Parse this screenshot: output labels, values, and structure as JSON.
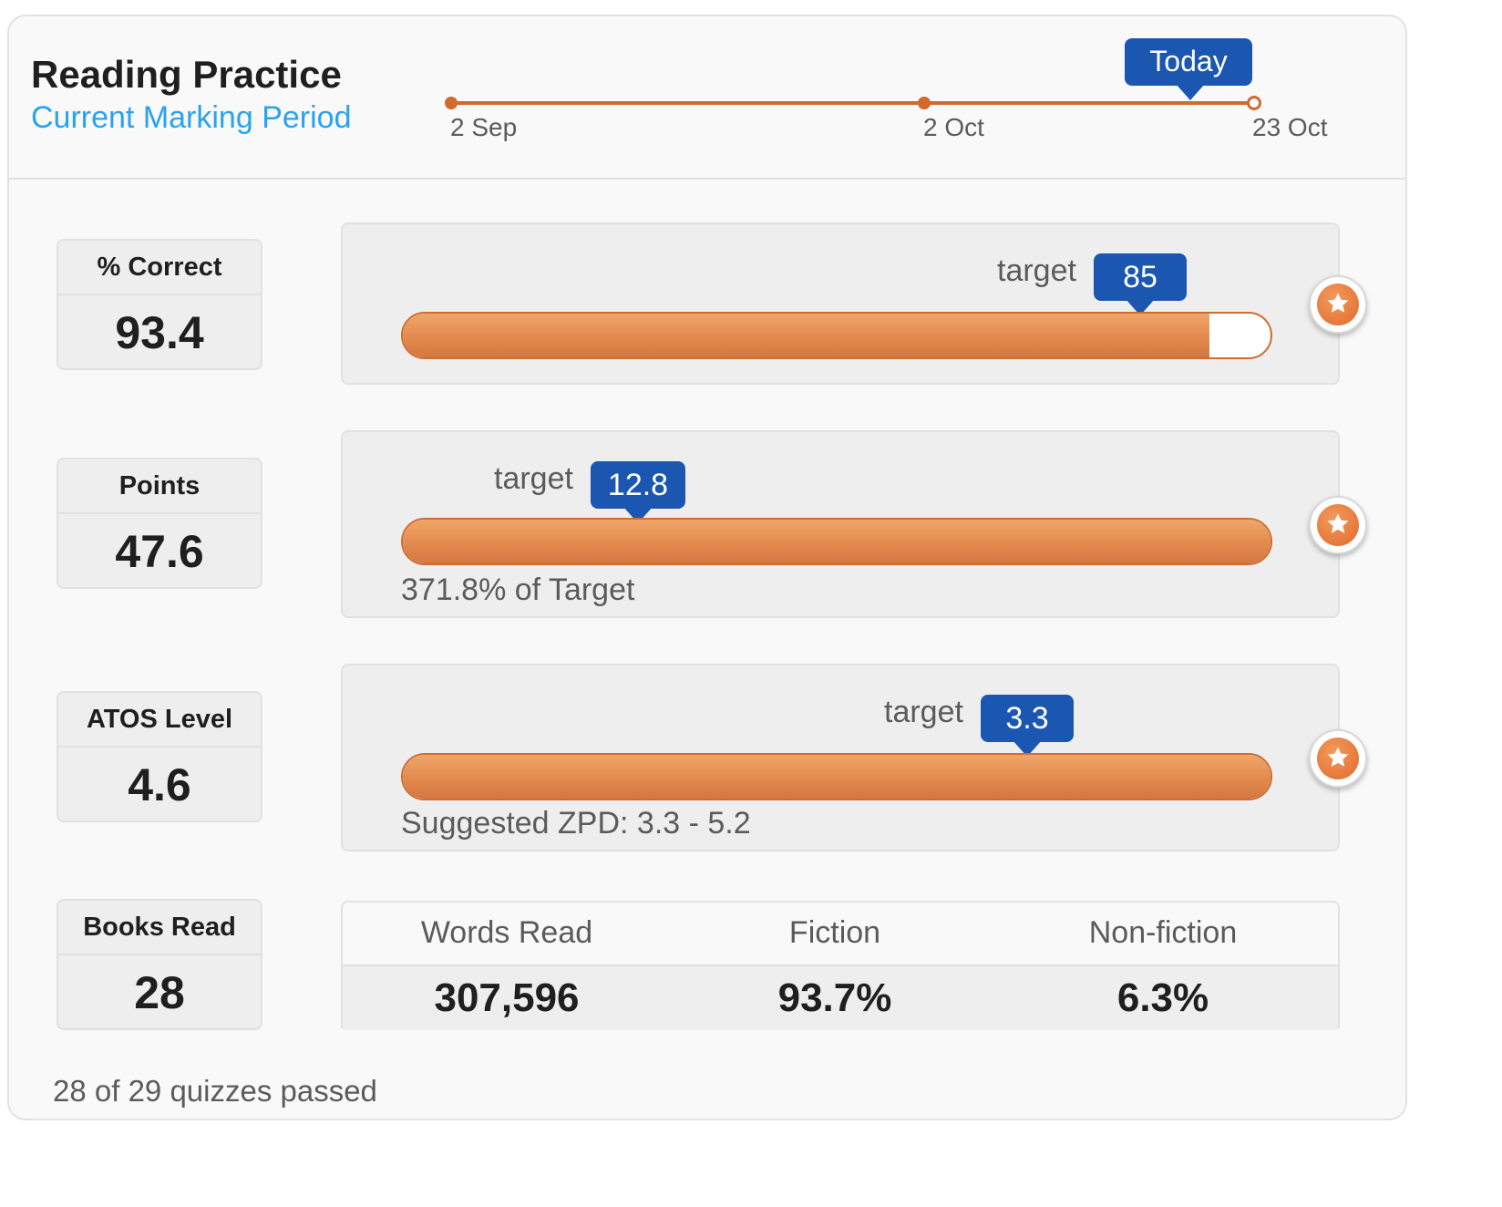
{
  "header": {
    "title": "Reading Practice",
    "subtitle": "Current Marking Period",
    "timeline": {
      "start_label": "2 Sep",
      "mid_label": "2 Oct",
      "end_label": "23 Oct",
      "today_label": "Today"
    }
  },
  "metrics": [
    {
      "label": "% Correct",
      "value": "93.4",
      "target_word": "target",
      "target_value": "85",
      "progress_fraction": 0.93,
      "note": "",
      "icon": "star-icon"
    },
    {
      "label": "Points",
      "value": "47.6",
      "target_word": "target",
      "target_value": "12.8",
      "progress_fraction": 1.0,
      "note": "371.8% of Target",
      "icon": "star-icon"
    },
    {
      "label": "ATOS Level",
      "value": "4.6",
      "target_word": "target",
      "target_value": "3.3",
      "progress_fraction": 1.0,
      "note": "Suggested ZPD: 3.3 - 5.2",
      "icon": "star-icon"
    }
  ],
  "books": {
    "label": "Books Read",
    "value": "28"
  },
  "stats": {
    "headers": [
      "Words Read",
      "Fiction",
      "Non-fiction"
    ],
    "values": [
      "307,596",
      "93.7%",
      "6.3%"
    ]
  },
  "footer": "28 of 29 quizzes passed",
  "colors": {
    "accent": "#e38a4e",
    "badge": "#1b56b0",
    "link": "#2aa2ee"
  }
}
